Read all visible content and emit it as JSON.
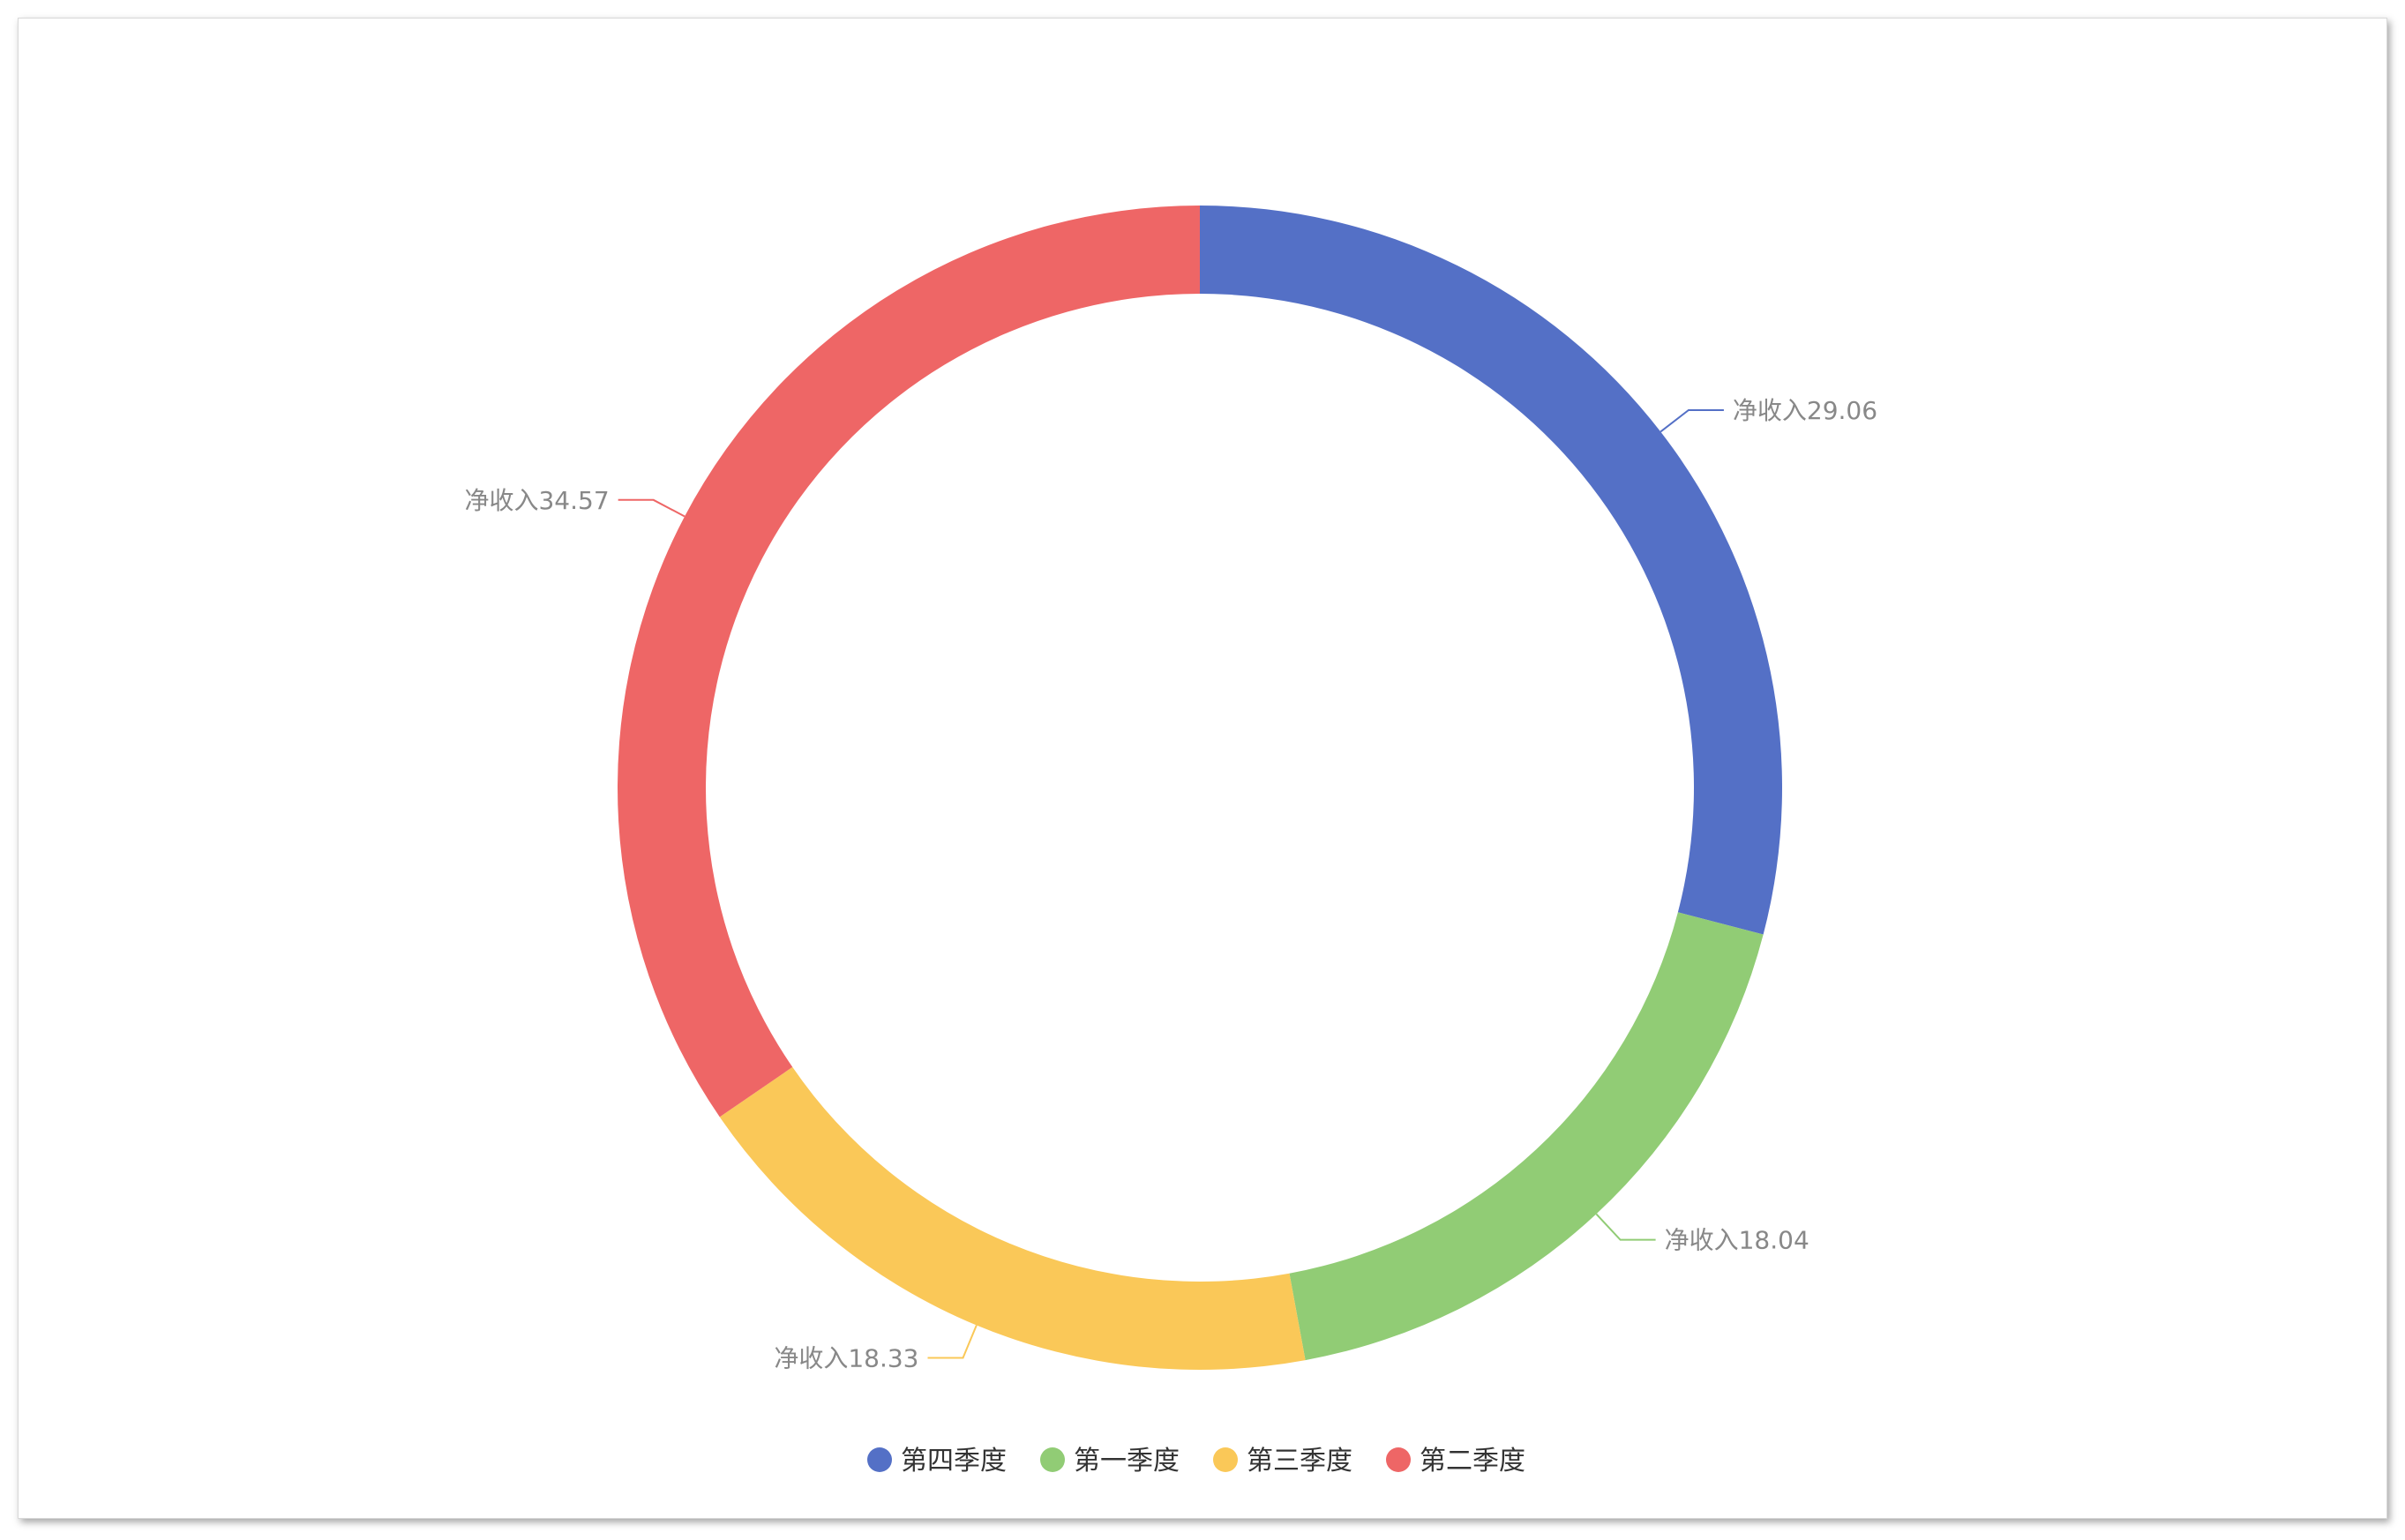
{
  "chart_data": {
    "type": "pie",
    "variant": "donut",
    "title": "",
    "series": [
      {
        "name": "第四季度",
        "value": 29.06,
        "label": "净收入29.06",
        "color": "#5470c6"
      },
      {
        "name": "第一季度",
        "value": 18.04,
        "label": "净收入18.04",
        "color": "#91cc75"
      },
      {
        "name": "第三季度",
        "value": 18.33,
        "label": "净收入18.33",
        "color": "#fac858"
      },
      {
        "name": "第二季度",
        "value": 34.57,
        "label": "净收入34.57",
        "color": "#ee6666"
      }
    ],
    "legend": {
      "placement": "bottom-center",
      "items": [
        "第四季度",
        "第一季度",
        "第三季度",
        "第二季度"
      ]
    },
    "label_color": "#888888"
  }
}
